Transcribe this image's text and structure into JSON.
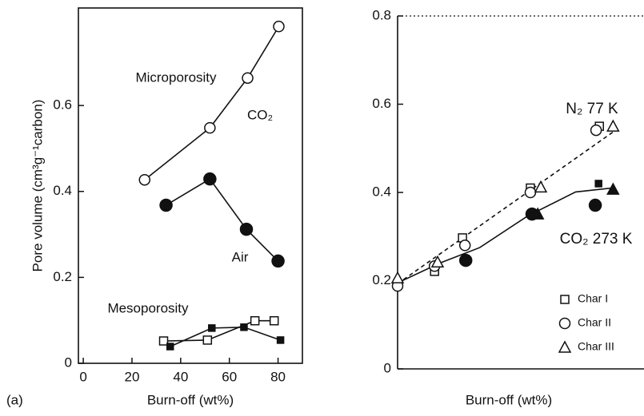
{
  "chart_data": [
    {
      "type": "scatter",
      "panel_label": "(a)",
      "x_label": "Burn-off (wt%)",
      "y_label": "Pore volume (cm³g⁻¹carbon)",
      "xlim": [
        -2,
        90
      ],
      "xticks": [
        0,
        20,
        40,
        60,
        80
      ],
      "ylim": [
        0,
        0.827
      ],
      "yticks": [
        0,
        0.2,
        0.4,
        0.6
      ],
      "annotations": [
        "Microporosity",
        "CO₂",
        "Air",
        "Mesoporosity"
      ],
      "series": [
        {
          "marker": "circle",
          "filled": false,
          "x": [
            25.2,
            52,
            67.5,
            80.3
          ],
          "values": [
            0.427,
            0.548,
            0.664,
            0.784
          ]
        },
        {
          "marker": "circle",
          "filled": true,
          "x": [
            34,
            52,
            67,
            80
          ],
          "values": [
            0.368,
            0.429,
            0.312,
            0.238
          ]
        },
        {
          "marker": "square",
          "filled": false,
          "x": [
            33,
            51,
            70.5,
            78.4
          ],
          "values": [
            0.052,
            0.054,
            0.099,
            0.099
          ]
        },
        {
          "marker": "square",
          "filled": true,
          "x": [
            35.7,
            52.8,
            66,
            81
          ],
          "values": [
            0.039,
            0.082,
            0.084,
            0.054
          ]
        }
      ]
    },
    {
      "type": "scatter",
      "x_label": "Burn-off (wt%)",
      "xlim": [
        0,
        90
      ],
      "ylim": [
        0,
        0.8
      ],
      "yticks": [
        0,
        0.2,
        0.4,
        0.6,
        0.8
      ],
      "lines": [
        {
          "label": "N₂ 77 K",
          "dashed": true,
          "x": [
            0,
            78.7
          ],
          "values": [
            0.193,
            0.537
          ]
        },
        {
          "label": "CO₂ 273 K",
          "dashed": false,
          "x": [
            0,
            15.5,
            30,
            47.6,
            65,
            78.4
          ],
          "values": [
            0.195,
            0.24,
            0.275,
            0.347,
            0.401,
            0.41
          ]
        }
      ],
      "series": [
        {
          "name": "Char I",
          "marker": "square",
          "x": [
            13.5,
            23.7,
            48.5,
            73.7
          ],
          "values": [
            0.221,
            0.297,
            0.41,
            0.55
          ],
          "x_filled": [
            73.4
          ],
          "values_filled": [
            0.42
          ]
        },
        {
          "name": "Char II",
          "marker": "circle",
          "x": [
            0,
            13.5,
            24.6,
            48.5,
            72.5
          ],
          "values": [
            0.188,
            0.233,
            0.28,
            0.4,
            0.541
          ],
          "x_filled": [
            24.9,
            49.1,
            72.2
          ],
          "values_filled": [
            0.246,
            0.351,
            0.371
          ]
        },
        {
          "name": "Char III",
          "marker": "triangle",
          "x": [
            0,
            14.6,
            52.3,
            78.7
          ],
          "values": [
            0.206,
            0.242,
            0.412,
            0.55
          ],
          "x_filled": [
            51.2,
            78.7
          ],
          "values_filled": [
            0.351,
            0.407
          ]
        }
      ]
    }
  ]
}
